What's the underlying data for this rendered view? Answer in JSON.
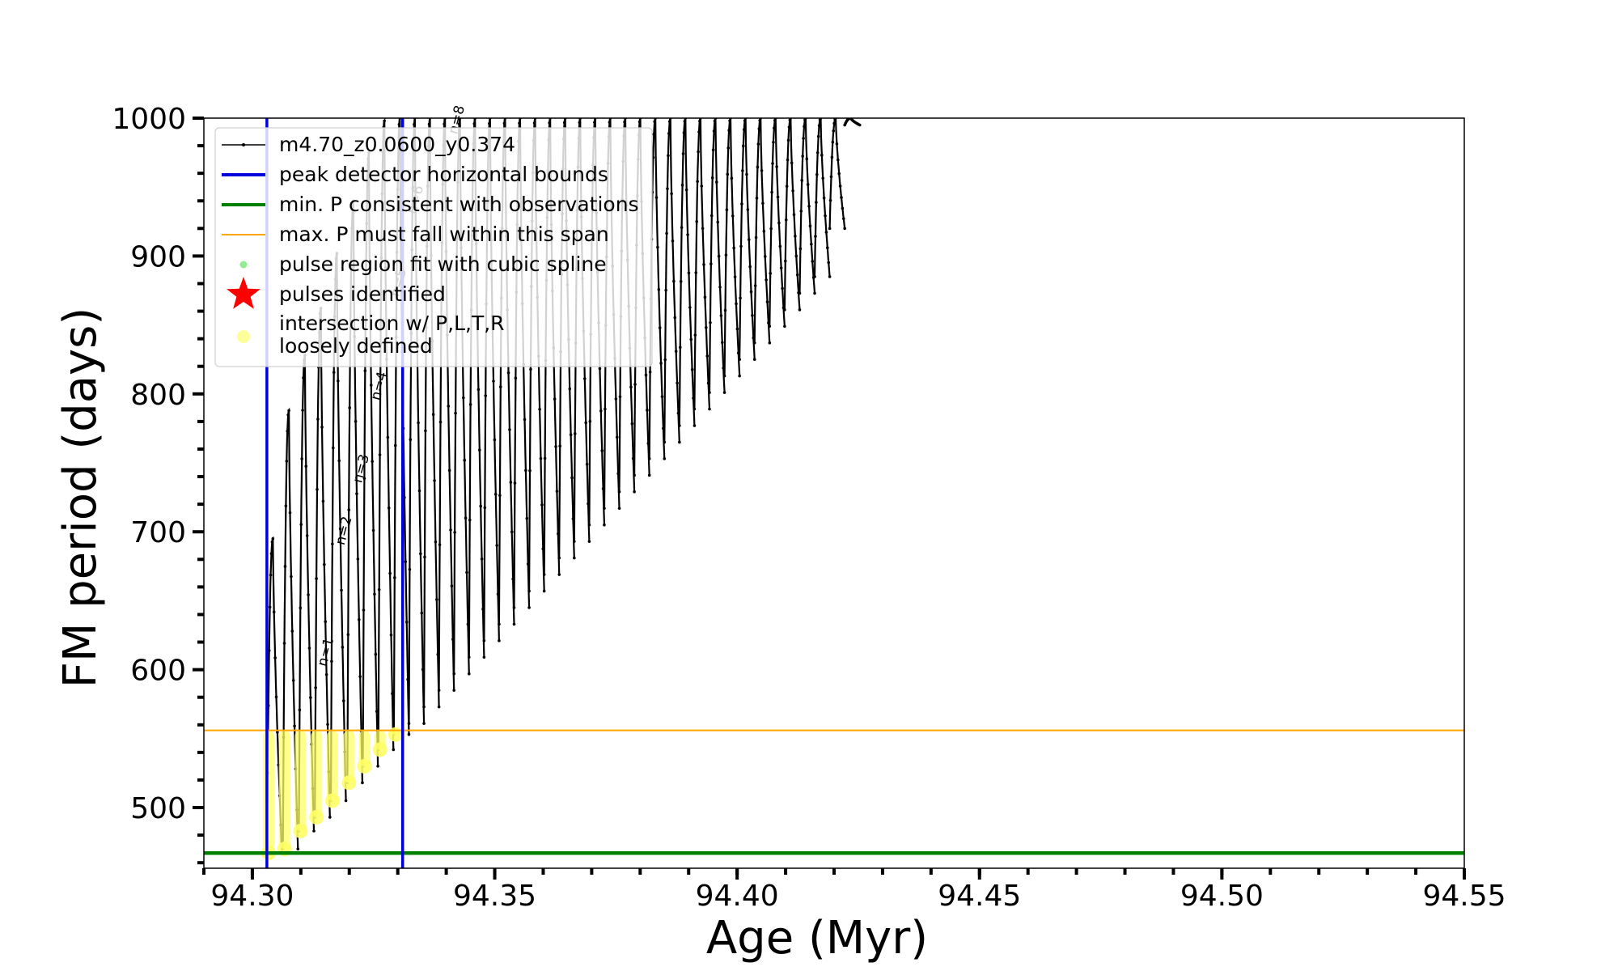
{
  "chart_data": {
    "type": "line",
    "xlabel": "Age (Myr)",
    "ylabel": "FM period (days)",
    "xlim": [
      94.29,
      94.55
    ],
    "ylim": [
      456,
      1000
    ],
    "xticks": [
      94.3,
      94.35,
      94.4,
      94.45,
      94.5,
      94.55
    ],
    "xtick_labels": [
      "94.30",
      "94.35",
      "94.40",
      "94.45",
      "94.50",
      "94.55"
    ],
    "yticks": [
      500,
      600,
      700,
      800,
      900,
      1000
    ],
    "ytick_labels": [
      "500",
      "600",
      "700",
      "800",
      "900",
      "1000"
    ],
    "grid": false,
    "legend_position": "upper-left",
    "legend": [
      {
        "label": "m4.70_z0.0600_y0.374",
        "style": "line-marker",
        "color": "#000000"
      },
      {
        "label": "peak detector horizontal bounds",
        "style": "line",
        "color": "#0000dd"
      },
      {
        "label": "min. P consistent with observations",
        "style": "line",
        "color": "#008000"
      },
      {
        "label": "max. P must fall within this span",
        "style": "thin-line",
        "color": "#ffa500"
      },
      {
        "label": "pulse region fit with cubic spline",
        "style": "dot",
        "color": "#90ee90"
      },
      {
        "label": "pulses identified",
        "style": "star",
        "color": "#ff0000"
      },
      {
        "label": "intersection w/ P,L,T,R\nloosely defined",
        "style": "circle",
        "color": "#ffff99"
      }
    ],
    "reference_lines": {
      "vertical": {
        "series": "peak detector horizontal bounds",
        "x": [
          94.303,
          94.331
        ],
        "color": "#0000dd"
      },
      "min_period": {
        "series": "min. P consistent with observations",
        "y": 467,
        "color": "#008000"
      },
      "max_period": {
        "series": "max. P must fall within this span",
        "y": 556,
        "color": "#ffa500"
      }
    },
    "pulses": {
      "series": "m4.70_z0.0600_y0.374",
      "color": "#000000",
      "x_start": [
        94.303,
        94.3063,
        94.3096,
        94.3129,
        94.3162,
        94.3196,
        94.3228,
        94.326,
        94.3292,
        94.3323,
        94.3354,
        94.3385,
        94.3416,
        94.3447,
        94.3478,
        94.3509,
        94.354,
        94.3571,
        94.3602,
        94.3633,
        94.3664,
        94.3695,
        94.3726,
        94.3757,
        94.3788,
        94.3819,
        94.385,
        94.3881,
        94.3912,
        94.3943,
        94.3974,
        94.4005,
        94.4036,
        94.4067,
        94.4098,
        94.4129,
        94.416,
        94.4191,
        94.4222
      ],
      "period_min": [
        467,
        470,
        483,
        493,
        505,
        518,
        530,
        542,
        553,
        561,
        573,
        585,
        597,
        609,
        621,
        633,
        645,
        657,
        669,
        681,
        693,
        705,
        717,
        729,
        741,
        753,
        765,
        777,
        789,
        801,
        813,
        825,
        837,
        849,
        861,
        873,
        885,
        920,
        995
      ],
      "period_max": [
        695,
        788,
        828,
        862,
        902,
        940,
        975,
        998,
        1000,
        1000,
        1000,
        1000,
        1000,
        1000,
        1000,
        1000,
        1000,
        1000,
        1000,
        1000,
        1000,
        1000,
        1000,
        1000,
        1000,
        1000,
        1000,
        1000,
        1000,
        1000,
        1000,
        1000,
        1000,
        1000,
        1000,
        1000,
        1000,
        1000,
        1000
      ]
    },
    "intersection_regions": {
      "series": "intersection w/ P,L,T,R\nloosely defined",
      "color": "#ffff66",
      "x_start": [
        94.303,
        94.3063,
        94.3096,
        94.3129,
        94.3162,
        94.3196,
        94.3228,
        94.326,
        94.3292
      ],
      "period_min": [
        467,
        470,
        483,
        493,
        505,
        518,
        530,
        542,
        553
      ],
      "period_max": [
        556,
        556,
        556,
        556,
        556,
        556,
        556,
        556,
        556
      ]
    },
    "pulse_labels": [
      {
        "text": "n=1",
        "x": 94.316,
        "y": 612
      },
      {
        "text": "n=2",
        "x": 94.3197,
        "y": 700
      },
      {
        "text": "n=3",
        "x": 94.3233,
        "y": 745
      },
      {
        "text": "n=4",
        "x": 94.327,
        "y": 805
      },
      {
        "text": "n=5",
        "x": 94.331,
        "y": 880
      },
      {
        "text": "n=6",
        "x": 94.3345,
        "y": 940
      },
      {
        "text": "n=8",
        "x": 94.343,
        "y": 998
      }
    ]
  }
}
